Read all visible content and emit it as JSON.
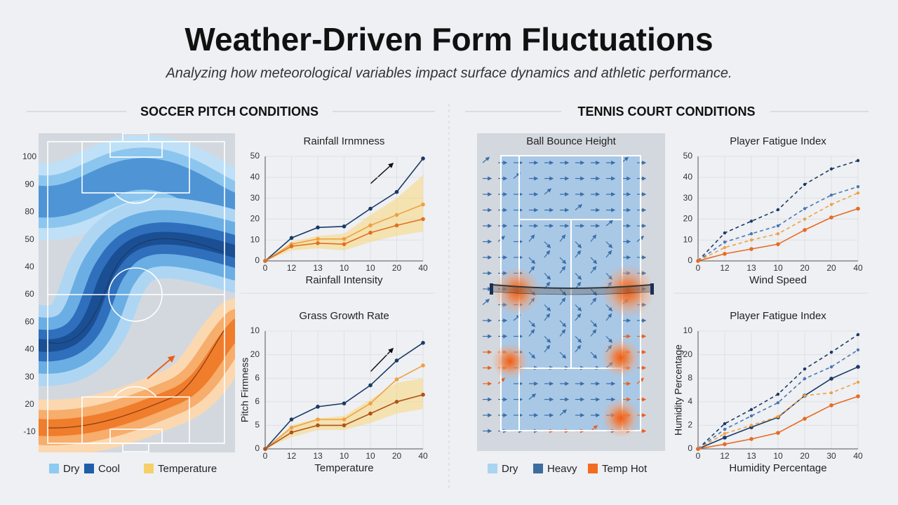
{
  "header": {
    "title": "Weather-Driven Form Fluctuations",
    "subtitle": "Analyzing how meteorological variables impact surface dynamics and athletic performance."
  },
  "sections": [
    {
      "heading": "SOCCER PITCH CONDITIONS",
      "panel": {
        "y_labels": [
          "100",
          "90",
          "80",
          "50",
          "40",
          "60",
          "60",
          "40",
          "30",
          "20",
          "-10"
        ]
      },
      "legend": [
        {
          "label": "Dry",
          "color": "#8ecbf0"
        },
        {
          "label": "Cool",
          "color": "#1f5fa8"
        },
        {
          "label": "Temperature",
          "color": "#f7cf6a"
        }
      ]
    },
    {
      "heading": "TENNIS COURT CONDITIONS",
      "panel": {
        "title": "Ball Bounce Height"
      },
      "legend": [
        {
          "label": "Dry",
          "color": "#a9d4f2"
        },
        {
          "label": "Heavy",
          "color": "#3d6c9e"
        },
        {
          "label": "Temp Hot",
          "color": "#f26b21"
        }
      ]
    }
  ],
  "chart_data": [
    {
      "type": "line",
      "title": "Rainfall Irnmness",
      "x_label": "Rainfall Intensity",
      "categories": [
        "0",
        "12",
        "13",
        "10",
        "10",
        "20",
        "40"
      ],
      "ylim": [
        0,
        50
      ],
      "yticks": [
        0,
        10,
        20,
        30,
        40,
        50
      ],
      "grid": true,
      "band": {
        "color": "#f9d77a",
        "low": [
          0,
          5,
          6,
          5,
          9,
          12,
          14
        ],
        "high": [
          0,
          9,
          12,
          13,
          22,
          30,
          41
        ]
      },
      "series": [
        {
          "color": "#1b3a66",
          "dash": false,
          "values": [
            0,
            11,
            16,
            16.5,
            25,
            33,
            49
          ]
        },
        {
          "color": "#f0a040",
          "dash": false,
          "values": [
            0,
            8,
            10.5,
            10.5,
            17,
            22,
            27
          ]
        },
        {
          "color": "#e07020",
          "dash": false,
          "values": [
            0,
            7,
            8.5,
            8,
            13.5,
            17,
            20
          ]
        }
      ]
    },
    {
      "type": "line",
      "title": "Grass Growth Rate",
      "x_label": "Temperature",
      "y_label": "Pitch Firmness",
      "categories": [
        "0",
        "12",
        "13",
        "10",
        "10",
        "20",
        "40"
      ],
      "ylim": [
        0,
        5
      ],
      "yticks": [
        {
          "value": 0,
          "label": "0"
        },
        {
          "value": 1,
          "label": "5"
        },
        {
          "value": 2,
          "label": "6"
        },
        {
          "value": 3,
          "label": "6"
        },
        {
          "value": 4,
          "label": "20"
        },
        {
          "value": 5,
          "label": "10"
        }
      ],
      "grid": true,
      "band": {
        "color": "#f9d77a",
        "low": [
          0,
          0.5,
          0.8,
          0.8,
          1.1,
          1.5,
          1.7
        ],
        "high": [
          0,
          1.0,
          1.3,
          1.4,
          2.1,
          2.8,
          3.0
        ]
      },
      "series": [
        {
          "color": "#1b3a66",
          "dash": false,
          "values": [
            0,
            1.25,
            1.79,
            1.93,
            2.7,
            3.75,
            4.5
          ]
        },
        {
          "color": "#f0a040",
          "dash": false,
          "values": [
            0,
            0.9,
            1.25,
            1.25,
            1.93,
            2.95,
            3.54
          ]
        },
        {
          "color": "#b0521a",
          "dash": false,
          "values": [
            0,
            0.7,
            1.0,
            1.0,
            1.5,
            2.0,
            2.3
          ]
        }
      ]
    },
    {
      "type": "line",
      "title": "Player Fatigue Index",
      "x_label": "Wind Speed",
      "categories": [
        "0",
        "12",
        "13",
        "10",
        "20",
        "20",
        "40"
      ],
      "ylim": [
        0,
        50
      ],
      "yticks": [
        0,
        10,
        20,
        30,
        40,
        50
      ],
      "grid": true,
      "series": [
        {
          "color": "#1b3a66",
          "dash": true,
          "values": [
            0,
            13.4,
            19,
            24.5,
            36.6,
            44,
            48
          ]
        },
        {
          "color": "#4a76b0",
          "dash": true,
          "values": [
            0,
            9,
            13,
            16.8,
            25,
            31.5,
            35.5
          ]
        },
        {
          "color": "#f0a040",
          "dash": true,
          "values": [
            0,
            6.4,
            10,
            13,
            20,
            27,
            32.5
          ]
        },
        {
          "color": "#e86a20",
          "dash": false,
          "values": [
            0,
            3.4,
            5.7,
            8,
            14.8,
            20.8,
            25
          ]
        }
      ]
    },
    {
      "type": "line",
      "title": "Player Fatigue Index",
      "x_label": "Humidity Percentage",
      "y_label": "Humidity Percentage",
      "categories": [
        "0",
        "12",
        "13",
        "10",
        "20",
        "30",
        "40"
      ],
      "ylim": [
        0,
        5
      ],
      "yticks": [
        {
          "value": 0,
          "label": "0"
        },
        {
          "value": 1,
          "label": "2"
        },
        {
          "value": 2,
          "label": "4"
        },
        {
          "value": 3,
          "label": "8"
        },
        {
          "value": 4,
          "label": "20"
        },
        {
          "value": 5,
          "label": "10"
        }
      ],
      "grid": true,
      "series": [
        {
          "color": "#1b3a66",
          "dash": false,
          "values": [
            0,
            0.48,
            0.92,
            1.34,
            2.26,
            2.98,
            3.48
          ]
        },
        {
          "color": "#1b3a66",
          "dash": true,
          "values": [
            0,
            1.07,
            1.67,
            2.32,
            3.39,
            4.1,
            4.85
          ]
        },
        {
          "color": "#4a76b0",
          "dash": true,
          "values": [
            0,
            0.83,
            1.4,
            1.96,
            2.98,
            3.48,
            4.2
          ]
        },
        {
          "color": "#f0a040",
          "dash": true,
          "values": [
            0,
            0.65,
            1.0,
            1.37,
            2.26,
            2.38,
            2.83
          ]
        },
        {
          "color": "#e86a20",
          "dash": false,
          "values": [
            0,
            0.2,
            0.42,
            0.68,
            1.28,
            1.85,
            2.23
          ]
        }
      ]
    }
  ]
}
